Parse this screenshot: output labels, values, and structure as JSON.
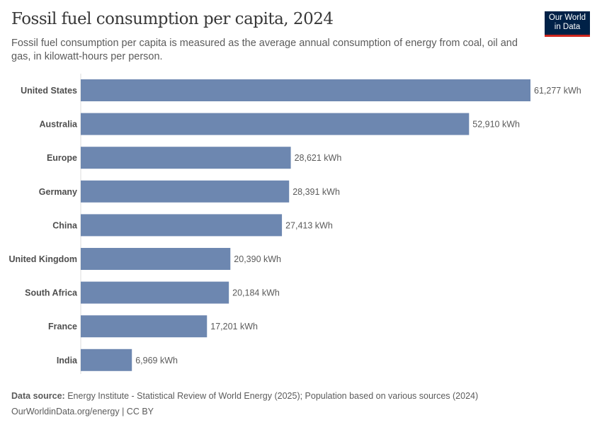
{
  "header": {
    "title": "Fossil fuel consumption per capita, 2024",
    "subtitle": "Fossil fuel consumption per capita is measured as the average annual consumption of energy from coal, oil and gas, in kilowatt-hours per person.",
    "logo": "Our World in Data"
  },
  "chart_data": {
    "type": "bar",
    "orientation": "horizontal",
    "title": "Fossil fuel consumption per capita, 2024",
    "unit": "kWh",
    "categories": [
      "United States",
      "Australia",
      "Europe",
      "Germany",
      "China",
      "United Kingdom",
      "South Africa",
      "France",
      "India"
    ],
    "values": [
      61277,
      52910,
      28621,
      28391,
      27413,
      20390,
      20184,
      17201,
      6969
    ],
    "labels": [
      "61,277 kWh",
      "52,910 kWh",
      "28,621 kWh",
      "28,391 kWh",
      "27,413 kWh",
      "20,390 kWh",
      "20,184 kWh",
      "17,201 kWh",
      "6,969 kWh"
    ],
    "bar_color": "#6d87b0",
    "xlim": [
      0,
      61277
    ],
    "grid": false
  },
  "footer": {
    "source_label": "Data source:",
    "source": "Energy Institute - Statistical Review of World Energy (2025); Population based on various sources (2024)",
    "url": "OurWorldinData.org/energy | CC BY"
  }
}
